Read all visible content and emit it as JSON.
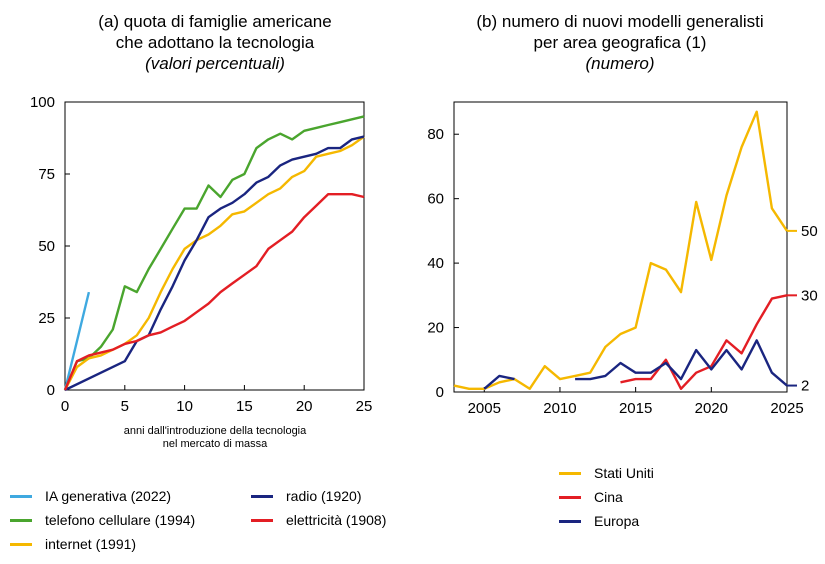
{
  "chart_data": [
    {
      "type": "line",
      "title": "(a) quota di famiglie americane che adottano la tecnologia",
      "title_lines": [
        "(a) quota di famiglie americane",
        "che adottano la tecnologia"
      ],
      "subtitle": "(valori percentuali)",
      "xlabel_lines": [
        "anni dall'introduzione della tecnologia",
        "nel mercato di massa"
      ],
      "xlim": [
        0,
        25
      ],
      "ylim": [
        0,
        100
      ],
      "xticks": [
        0,
        5,
        10,
        15,
        20,
        25
      ],
      "yticks": [
        0,
        25,
        50,
        75,
        100
      ],
      "grid": false,
      "legend_position": "bottom",
      "series": [
        {
          "name": "IA generativa (2022)",
          "color": "#3fa9e0",
          "x": [
            0,
            1,
            2
          ],
          "y": [
            0,
            17,
            34
          ]
        },
        {
          "name": "telefono cellulare (1994)",
          "color": "#4aa52e",
          "x": [
            0,
            1,
            2,
            3,
            4,
            5,
            6,
            7,
            8,
            9,
            10,
            11,
            12,
            13,
            14,
            15,
            16,
            17,
            18,
            19,
            20,
            21,
            22,
            23,
            24,
            25
          ],
          "y": [
            0,
            10,
            11,
            15,
            21,
            36,
            34,
            42,
            49,
            56,
            63,
            63,
            71,
            67,
            73,
            75,
            84,
            87,
            89,
            87,
            90,
            91,
            92,
            93,
            94,
            95
          ]
        },
        {
          "name": "internet (1991)",
          "color": "#f5b800",
          "x": [
            0,
            1,
            2,
            3,
            4,
            5,
            6,
            7,
            8,
            9,
            10,
            11,
            12,
            13,
            14,
            15,
            16,
            17,
            18,
            19,
            20,
            21,
            22,
            23,
            24,
            25
          ],
          "y": [
            0,
            8,
            11,
            12,
            14,
            16,
            19,
            25,
            34,
            42,
            49,
            52,
            54,
            57,
            61,
            62,
            65,
            68,
            70,
            74,
            76,
            81,
            82,
            83,
            85,
            88
          ]
        },
        {
          "name": "radio (1920)",
          "color": "#1a2580",
          "x": [
            0,
            5,
            6,
            7,
            8,
            9,
            10,
            11,
            12,
            13,
            14,
            15,
            16,
            17,
            18,
            19,
            20,
            21,
            22,
            23,
            24,
            25
          ],
          "y": [
            0,
            10,
            17,
            19,
            28,
            36,
            45,
            52,
            60,
            63,
            65,
            68,
            72,
            74,
            78,
            80,
            81,
            82,
            84,
            84,
            87,
            88
          ]
        },
        {
          "name": "elettricità (1908)",
          "color": "#e31e24",
          "x": [
            0,
            1,
            2,
            3,
            4,
            5,
            6,
            7,
            8,
            9,
            10,
            11,
            12,
            13,
            14,
            15,
            16,
            17,
            18,
            19,
            20,
            21,
            22,
            23,
            24,
            25
          ],
          "y": [
            0,
            10,
            12,
            13,
            14,
            16,
            17,
            19,
            20,
            22,
            24,
            27,
            30,
            34,
            37,
            40,
            43,
            49,
            52,
            55,
            60,
            64,
            68,
            68,
            68,
            67
          ]
        }
      ]
    },
    {
      "type": "line",
      "title": "(b) numero di nuovi modelli generalisti per area geografica (1)",
      "title_lines": [
        "(b) numero di nuovi modelli generalisti",
        "per area geografica (1)"
      ],
      "subtitle": "(numero)",
      "xlim": [
        2003,
        2025
      ],
      "ylim": [
        0,
        90
      ],
      "xticks": [
        2005,
        2010,
        2015,
        2020,
        2025
      ],
      "yticks": [
        0,
        20,
        40,
        60,
        80
      ],
      "grid": false,
      "legend_position": "bottom",
      "end_labels": [
        "50",
        "30",
        "2"
      ],
      "series": [
        {
          "name": "Stati Uniti",
          "color": "#f5b800",
          "x": [
            2003,
            2004,
            2005,
            2006,
            2007,
            2008,
            2009,
            2010,
            2011,
            2012,
            2013,
            2014,
            2015,
            2016,
            2017,
            2018,
            2019,
            2020,
            2021,
            2022,
            2023,
            2024,
            2025
          ],
          "y": [
            2,
            1,
            1,
            3,
            4,
            1,
            8,
            4,
            5,
            6,
            14,
            18,
            20,
            40,
            38,
            31,
            59,
            41,
            61,
            76,
            87,
            57,
            50
          ]
        },
        {
          "name": "Cina",
          "color": "#e31e24",
          "x": [
            2014,
            2015,
            2016,
            2017,
            2018,
            2019,
            2020,
            2021,
            2022,
            2023,
            2024,
            2025
          ],
          "y": [
            3,
            4,
            4,
            10,
            1,
            6,
            8,
            16,
            12,
            21,
            29,
            30
          ]
        },
        {
          "name": "Europa",
          "color": "#1a2580",
          "x": [
            2005,
            2006,
            2007,
            2008,
            2009,
            2010,
            2011,
            2012,
            2013,
            2014,
            2015,
            2016,
            2017,
            2018,
            2019,
            2020,
            2021,
            2022,
            2023,
            2024,
            2025
          ],
          "y": [
            1,
            5,
            4,
            null,
            null,
            null,
            4,
            4,
            5,
            9,
            6,
            6,
            9,
            4,
            13,
            7,
            13,
            7,
            16,
            6,
            2
          ]
        }
      ]
    }
  ]
}
